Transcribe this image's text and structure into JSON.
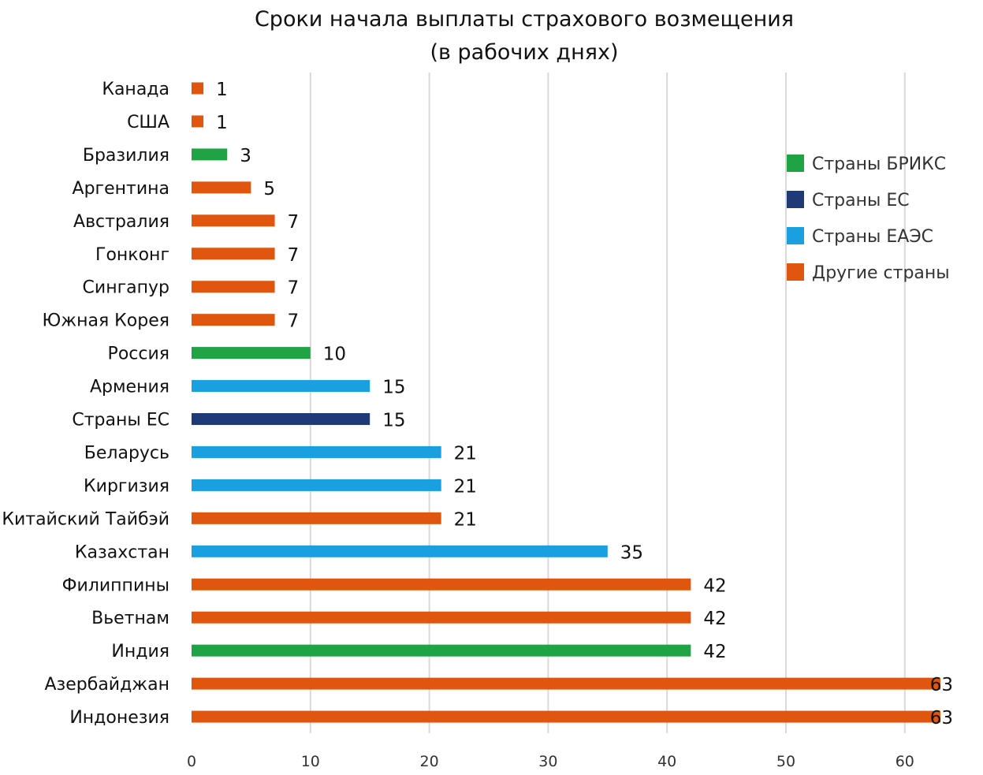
{
  "chart_data": {
    "type": "bar",
    "orientation": "horizontal",
    "title": "Сроки начала выплаты страхового возмещения",
    "subtitle": "(в рабочих днях)",
    "xlim": [
      0,
      63
    ],
    "x_ticks": [
      0,
      10,
      20,
      30,
      40,
      50,
      60
    ],
    "grid": true,
    "legend_position": "right",
    "groups": [
      {
        "key": "brics",
        "name": "Страны БРИКС",
        "color": "#1FA345"
      },
      {
        "key": "eu",
        "name": "Страны ЕС",
        "color": "#203A78"
      },
      {
        "key": "eaeu",
        "name": "Страны ЕАЭС",
        "color": "#1A9FE0"
      },
      {
        "key": "other",
        "name": "Другие страны",
        "color": "#E0560E"
      }
    ],
    "categories": [
      "Канада",
      "США",
      "Бразилия",
      "Аргентина",
      "Австралия",
      "Гонконг",
      "Сингапур",
      "Южная Корея",
      "Россия",
      "Армения",
      "Страны ЕС",
      "Беларусь",
      "Киргизия",
      "Китайский Тайбэй",
      "Казахстан",
      "Филиппины",
      "Вьетнам",
      "Индия",
      "Азербайджан",
      "Индонезия"
    ],
    "values": [
      1,
      1,
      3,
      5,
      7,
      7,
      7,
      7,
      10,
      15,
      15,
      21,
      21,
      21,
      35,
      42,
      42,
      42,
      63,
      63
    ],
    "category_groups": [
      "other",
      "other",
      "brics",
      "other",
      "other",
      "other",
      "other",
      "other",
      "brics",
      "eaeu",
      "eu",
      "eaeu",
      "eaeu",
      "other",
      "eaeu",
      "other",
      "other",
      "brics",
      "other",
      "other"
    ]
  }
}
